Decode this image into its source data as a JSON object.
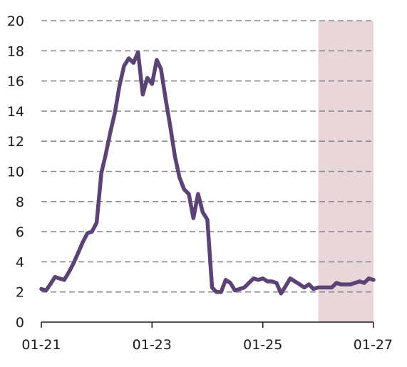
{
  "chart_data": {
    "type": "line",
    "title": "",
    "xlabel": "",
    "ylabel": "",
    "ylim": [
      0,
      20
    ],
    "y_ticks": [
      "0",
      "2",
      "4",
      "6",
      "8",
      "10",
      "12",
      "14",
      "16",
      "18",
      "20"
    ],
    "x_ticks": [
      "01-21",
      "01-23",
      "01-25",
      "01-27"
    ],
    "grid": "horizontal dashed",
    "colors": {
      "line": "#5b4475",
      "shade": "#e8d6da",
      "grid": "#8a8a8a"
    },
    "forecast_shading": {
      "from": "2026-01",
      "to": "2027-01"
    },
    "series": [
      {
        "x": [
          "2021-01",
          "2021-02",
          "2021-03",
          "2021-04",
          "2021-05",
          "2021-06",
          "2021-07",
          "2021-08",
          "2021-09",
          "2021-10",
          "2021-11",
          "2021-12",
          "2022-01",
          "2022-02",
          "2022-03",
          "2022-04",
          "2022-05",
          "2022-06",
          "2022-07",
          "2022-08",
          "2022-09",
          "2022-10",
          "2022-11",
          "2022-12",
          "2023-01",
          "2023-02",
          "2023-03",
          "2023-04",
          "2023-05",
          "2023-06",
          "2023-07",
          "2023-08",
          "2023-09",
          "2023-10",
          "2023-11",
          "2023-12",
          "2024-01",
          "2024-02",
          "2024-03",
          "2024-04",
          "2024-05",
          "2024-06",
          "2024-07",
          "2024-08",
          "2024-09",
          "2024-10",
          "2024-11",
          "2024-12",
          "2025-01",
          "2025-02",
          "2025-03",
          "2025-04",
          "2025-05",
          "2025-06",
          "2025-07",
          "2025-08",
          "2025-09",
          "2025-10",
          "2025-11",
          "2025-12",
          "2026-01",
          "2026-02",
          "2026-03",
          "2026-04",
          "2026-05",
          "2026-06",
          "2026-07",
          "2026-08",
          "2026-09",
          "2026-10",
          "2026-11",
          "2026-12",
          "2027-01"
        ],
        "values": [
          2.2,
          2.1,
          2.5,
          3.0,
          2.9,
          2.8,
          3.3,
          3.9,
          4.6,
          5.3,
          5.9,
          6.0,
          6.6,
          9.9,
          11.1,
          12.6,
          13.9,
          15.7,
          17.0,
          17.5,
          17.2,
          17.9,
          15.1,
          16.2,
          15.8,
          17.4,
          16.8,
          14.8,
          13.0,
          11.0,
          9.6,
          8.8,
          8.5,
          6.9,
          8.5,
          7.3,
          6.8,
          2.3,
          2.0,
          2.0,
          2.8,
          2.6,
          2.1,
          2.2,
          2.3,
          2.6,
          2.9,
          2.8,
          2.9,
          2.7,
          2.7,
          2.6,
          1.9,
          2.4,
          2.9,
          2.7,
          2.5,
          2.3,
          2.5,
          2.2,
          2.3,
          2.3,
          2.3,
          2.3,
          2.6,
          2.5,
          2.5,
          2.5,
          2.6,
          2.7,
          2.6,
          2.9,
          2.8
        ]
      }
    ]
  }
}
